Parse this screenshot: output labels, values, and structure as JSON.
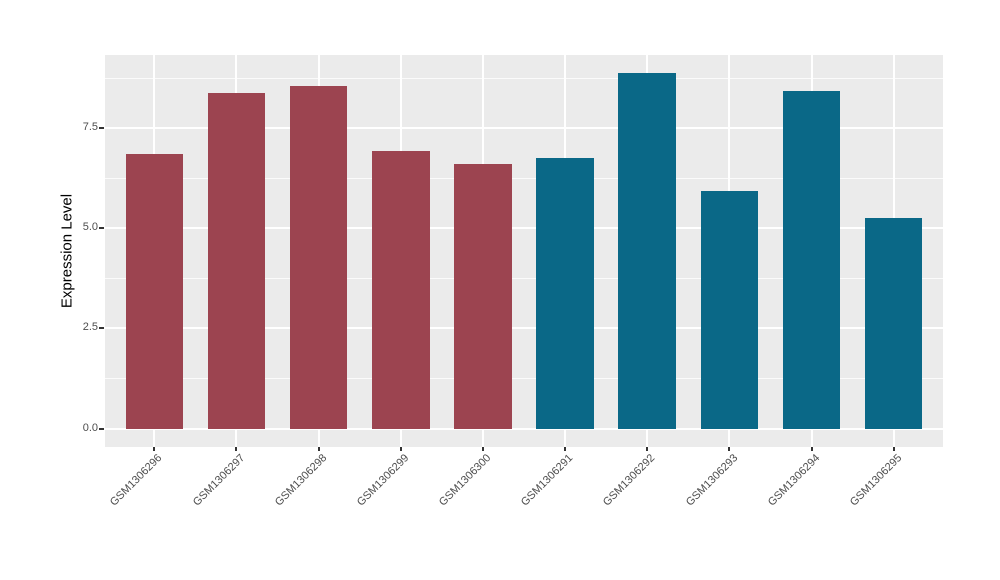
{
  "chart_data": {
    "type": "bar",
    "ylabel": "Expression Level",
    "categories": [
      "GSM1306296",
      "GSM1306297",
      "GSM1306298",
      "GSM1306299",
      "GSM1306300",
      "GSM1306291",
      "GSM1306292",
      "GSM1306293",
      "GSM1306294",
      "GSM1306295"
    ],
    "values": [
      6.87,
      8.39,
      8.55,
      6.92,
      6.61,
      6.77,
      8.88,
      5.94,
      8.42,
      5.27
    ],
    "bar_colors": [
      "#9C4450",
      "#9C4450",
      "#9C4450",
      "#9C4450",
      "#9C4450",
      "#0A6887",
      "#0A6887",
      "#0A6887",
      "#0A6887",
      "#0A6887"
    ],
    "ylim": [
      -0.46,
      9.33
    ],
    "y_tick_values": [
      0,
      2.5,
      5,
      7.5
    ],
    "y_tick_labels": [
      "0.0",
      "2.5",
      "5.0",
      "7.5"
    ],
    "y_minor_values": [
      1.25,
      3.75,
      6.25,
      8.75
    ],
    "grid": true,
    "legend_position": "none",
    "colors": {
      "panel_background": "#EBEBEB",
      "gridline": "#FFFFFF",
      "axis_text": "#4D4D4D",
      "axis_title": "#000000",
      "tick_mark": "#333333",
      "group_left": "#9C4450",
      "group_right": "#0A6887"
    }
  }
}
